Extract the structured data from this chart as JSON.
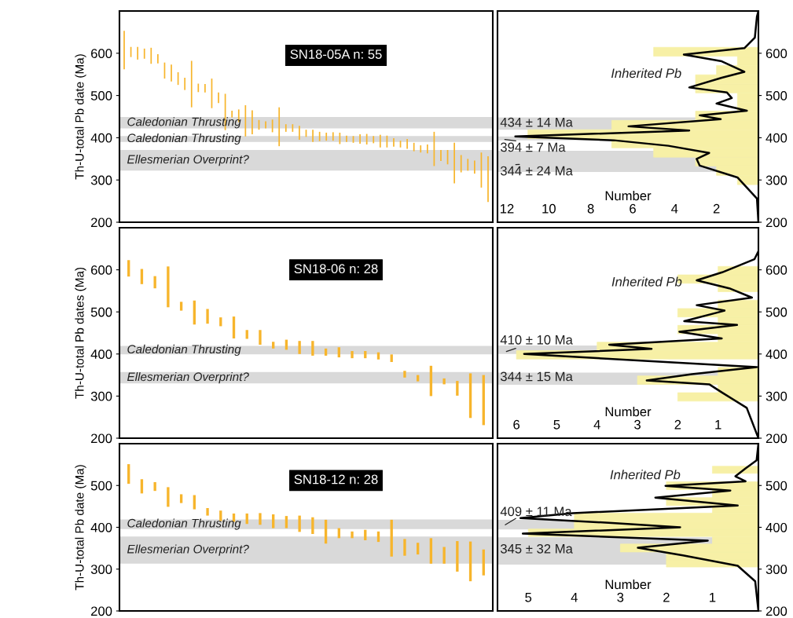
{
  "chart_data": [
    {
      "type": "bar",
      "ylabel": "Th-U-total Pb date (Ma)",
      "categories": [
        null,
        null,
        null,
        null,
        null,
        null,
        null,
        null,
        null,
        null,
        null,
        null,
        null,
        null,
        null,
        null,
        null,
        null,
        null,
        null,
        null,
        null,
        null,
        null,
        null,
        null,
        null,
        null,
        null,
        null,
        null,
        null,
        null,
        null,
        null,
        null,
        null,
        null,
        null,
        null,
        null,
        null,
        null,
        null,
        null,
        null,
        null,
        null,
        null,
        null,
        null,
        null,
        null,
        null,
        null
      ],
      "base": [
        562,
        591,
        585,
        587,
        575,
        576,
        540,
        533,
        525,
        513,
        472,
        508,
        507,
        470,
        482,
        418,
        448,
        437,
        403,
        408,
        419,
        422,
        413,
        380,
        414,
        414,
        395,
        402,
        390,
        392,
        393,
        393,
        385,
        390,
        388,
        386,
        384,
        387,
        377,
        377,
        379,
        377,
        374,
        368,
        365,
        363,
        333,
        345,
        337,
        292,
        318,
        322,
        315,
        282,
        248
      ],
      "values": [
        91,
        24,
        30,
        24,
        38,
        22,
        38,
        40,
        30,
        29,
        110,
        20,
        20,
        70,
        25,
        86,
        16,
        30,
        74,
        57,
        23,
        17,
        30,
        92,
        18,
        18,
        33,
        17,
        29,
        22,
        19,
        20,
        27,
        15,
        16,
        22,
        25,
        17,
        30,
        28,
        20,
        16,
        23,
        20,
        17,
        21,
        81,
        26,
        34,
        96,
        41,
        28,
        31,
        83,
        108
      ],
      "color": "#f7b52c",
      "ylim": [
        200,
        700
      ],
      "yticks": [
        200,
        300,
        400,
        500,
        600
      ],
      "tick_labels": "y",
      "bands": [
        {
          "axis": "y",
          "from": 422,
          "to": 449,
          "label": "Caledonian Thrusting",
          "color": "#d9d9d9"
        },
        {
          "axis": "y",
          "from": 390,
          "to": 404,
          "label": "Caledonian Thrusting",
          "color": "#d9d9d9"
        },
        {
          "axis": "y",
          "from": 322,
          "to": 371,
          "label": "Ellesmerian Overprint?",
          "color": "#d9d9d9"
        }
      ],
      "annotations": [
        "SN18-05A n: 55"
      ]
    },
    {
      "type": "histogram",
      "orientation": "horizontal",
      "xlabel": "Number",
      "xlim": [
        12.45,
        0
      ],
      "xticks": [
        12,
        10,
        8,
        6,
        4,
        2
      ],
      "ylim": [
        200,
        700
      ],
      "yticks": [
        200,
        300,
        400,
        500,
        600
      ],
      "bins": [
        289,
        311,
        333,
        354,
        376,
        398,
        419,
        441,
        463,
        484,
        506,
        528,
        549,
        571,
        593,
        614
      ],
      "series": [
        {
          "type": "histogram",
          "color": "#f7f0a6",
          "values": [
            1,
            2,
            3,
            5,
            7,
            11,
            7,
            3,
            1,
            1,
            3,
            3,
            2,
            1,
            5
          ]
        },
        {
          "type": "line",
          "color": "#000000",
          "values": [
            0,
            0.07,
            0.17,
            0.67,
            3.56,
            1.75,
            0.67,
            1.75,
            3.3,
            1.5,
            1.27,
            2.0,
            0.55,
            2.8,
            1.8,
            6.2,
            3.3,
            11.6,
            6.9,
            4.3,
            2.35,
            2.95,
            2.8,
            1.0,
            0.07,
            0
          ],
          "x": [
            700,
            687,
            637,
            612,
            597,
            581,
            556,
            542,
            519,
            507,
            494,
            481,
            464,
            453,
            444,
            427,
            417,
            403,
            394,
            381,
            364,
            350,
            334,
            306,
            256,
            200
          ]
        }
      ],
      "bands": [
        {
          "axis": "y",
          "from": 419,
          "to": 448,
          "color": "#d9d9d9"
        },
        {
          "axis": "y",
          "from": 394,
          "to": 403,
          "color": "#d9d9d9"
        },
        {
          "axis": "y",
          "from": 319,
          "to": 369,
          "color": "#d9d9d9"
        }
      ],
      "annotations": [
        "Inherited Pb",
        "434 ± 14 Ma",
        "394 ± 7 Ma",
        "344 ± 24 Ma"
      ]
    },
    {
      "type": "bar",
      "ylabel": "Th-U-total Pb dates (Ma)",
      "categories": [
        null,
        null,
        null,
        null,
        null,
        null,
        null,
        null,
        null,
        null,
        null,
        null,
        null,
        null,
        null,
        null,
        null,
        null,
        null,
        null,
        null,
        null,
        null,
        null,
        null,
        null,
        null,
        null
      ],
      "base": [
        584,
        566,
        556,
        511,
        503,
        470,
        472,
        466,
        437,
        436,
        422,
        413,
        410,
        400,
        396,
        396,
        392,
        390,
        390,
        387,
        381,
        344,
        335,
        300,
        328,
        301,
        248,
        231
      ],
      "values": [
        39,
        36,
        29,
        97,
        21,
        57,
        35,
        21,
        52,
        21,
        35,
        16,
        24,
        31,
        35,
        17,
        24,
        17,
        17,
        17,
        18,
        16,
        15,
        72,
        14,
        35,
        106,
        119
      ],
      "color": "#f7b52c",
      "ylim": [
        200,
        700
      ],
      "yticks": [
        200,
        300,
        400,
        500,
        600
      ],
      "tick_labels": "y",
      "bands": [
        {
          "axis": "y",
          "from": 399,
          "to": 419,
          "label": "Caledonian Thrusting",
          "color": "#d9d9d9"
        },
        {
          "axis": "y",
          "from": 330,
          "to": 357,
          "label": "Ellesmerian Overprint?",
          "color": "#d9d9d9"
        }
      ],
      "annotations": [
        "SN18-06 n: 28"
      ]
    },
    {
      "type": "histogram",
      "orientation": "horizontal",
      "xlabel": "Number",
      "xlim": [
        6.47,
        0
      ],
      "xticks": [
        6,
        5,
        4,
        3,
        2,
        1
      ],
      "ylim": [
        200,
        700
      ],
      "yticks": [
        200,
        300,
        400,
        500,
        600
      ],
      "bins": [
        288,
        308,
        328,
        348,
        368,
        388,
        408,
        428,
        448,
        468,
        488,
        508,
        528,
        548,
        568,
        588,
        608
      ],
      "series": [
        {
          "type": "histogram",
          "color": "#f7f0a6",
          "values": [
            2,
            1,
            3,
            1,
            0,
            6,
            4,
            1,
            2,
            1,
            2,
            1,
            0,
            1,
            2,
            1
          ]
        },
        {
          "type": "line",
          "color": "#000000",
          "values": [
            0,
            0.1,
            0.9,
            1.53,
            0.72,
            0.16,
            1.53,
            0.84,
            1.84,
            0.53,
            1.96,
            0.91,
            3.7,
            2.65,
            5.81,
            0.04,
            1.65,
            2.77,
            1.22,
            0.91,
            0.29,
            0
          ],
          "x": [
            644,
            625,
            594,
            575,
            556,
            534,
            516,
            503,
            478,
            469,
            453,
            437,
            422,
            412,
            400,
            369,
            352,
            337,
            328,
            309,
            272,
            200
          ]
        }
      ],
      "bands": [
        {
          "axis": "y",
          "from": 400,
          "to": 420,
          "color": "#d9d9d9"
        },
        {
          "axis": "y",
          "from": 327,
          "to": 356,
          "color": "#d9d9d9"
        }
      ],
      "annotations": [
        "Inherited Pb",
        "410 ± 10 Ma",
        "344 ± 15 Ma"
      ]
    },
    {
      "type": "bar",
      "ylabel": "Th-U-total Pb date (Ma)",
      "categories": [
        null,
        null,
        null,
        null,
        null,
        null,
        null,
        null,
        null,
        null,
        null,
        null,
        null,
        null,
        null,
        null,
        null,
        null,
        null,
        null,
        null,
        null,
        null,
        null,
        null,
        null,
        null,
        null
      ],
      "base": [
        504,
        481,
        487,
        449,
        458,
        443,
        428,
        415,
        413,
        408,
        406,
        398,
        398,
        389,
        384,
        361,
        374,
        374,
        369,
        365,
        330,
        332,
        335,
        313,
        313,
        294,
        271,
        285
      ],
      "values": [
        47,
        34,
        21,
        47,
        21,
        34,
        18,
        25,
        20,
        25,
        28,
        33,
        29,
        39,
        40,
        57,
        24,
        16,
        25,
        25,
        88,
        40,
        28,
        61,
        40,
        73,
        95,
        62
      ],
      "color": "#f7b52c",
      "ylim": [
        200,
        600
      ],
      "yticks": [
        200,
        300,
        400,
        500
      ],
      "tick_labels": "y",
      "bands": [
        {
          "axis": "y",
          "from": 396,
          "to": 419,
          "label": "Caledonian Thrusting",
          "color": "#d9d9d9"
        },
        {
          "axis": "y",
          "from": 313,
          "to": 378,
          "label": "Ellesmerian Overprint?",
          "color": "#d9d9d9"
        }
      ],
      "annotations": [
        "SN18-12 n: 28"
      ]
    },
    {
      "type": "histogram",
      "orientation": "horizontal",
      "xlabel": "Number",
      "xlim": [
        5.67,
        0
      ],
      "xticks": [
        5,
        4,
        3,
        2,
        1
      ],
      "ylim": [
        200,
        600
      ],
      "yticks": [
        200,
        300,
        400,
        500
      ],
      "bins": [
        305,
        322,
        341,
        360,
        378,
        396,
        415,
        434,
        452,
        471,
        490,
        509,
        529,
        546
      ],
      "series": [
        {
          "type": "histogram",
          "color": "#f7f0a6",
          "values": [
            2,
            2,
            3,
            1,
            5,
            4,
            4,
            1,
            2,
            1,
            2,
            0,
            1
          ]
        },
        {
          "type": "line",
          "color": "#000000",
          "values": [
            0,
            0.04,
            0.28,
            0.5,
            0.28,
            2.02,
            0.61,
            2.24,
            0.45,
            4.03,
            5.17,
            3.11,
            1.7,
            5.12,
            1.1,
            2.62,
            1.64,
            0.45,
            0.07,
            0
          ],
          "x": [
            600,
            560,
            541,
            522,
            510,
            499,
            488,
            471,
            452,
            434,
            422,
            410,
            400,
            385,
            368,
            351,
            333,
            308,
            271,
            200
          ]
        }
      ],
      "bands": [
        {
          "axis": "y",
          "from": 395,
          "to": 418,
          "color": "#d9d9d9"
        },
        {
          "axis": "y",
          "from": 311,
          "to": 376,
          "color": "#d9d9d9"
        }
      ],
      "annotations": [
        "Inherited Pb",
        "409 ± 11 Ma",
        "345 ± 32 Ma"
      ]
    }
  ]
}
